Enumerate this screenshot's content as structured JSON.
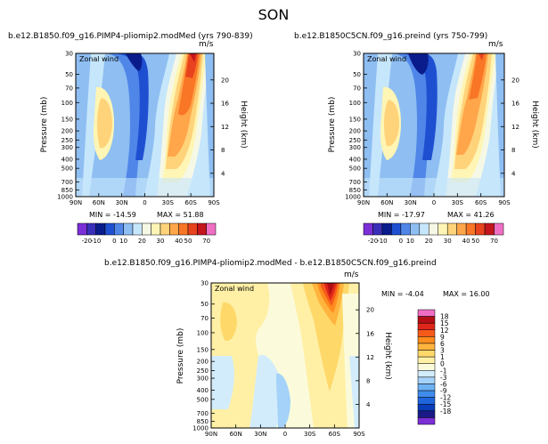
{
  "season_title": "SON",
  "colors": {
    "main_scale": [
      "#7b2fd6",
      "#3a2fb8",
      "#0a1c8c",
      "#1f4fd1",
      "#4f86e8",
      "#8ebef2",
      "#c6e6fb",
      "#f6f8e6",
      "#fff5b4",
      "#ffd37a",
      "#ffa64a",
      "#f87626",
      "#e8421e",
      "#c4151c",
      "#ef6ec3"
    ],
    "diff_scale": [
      "#7b2fd6",
      "#1a1a86",
      "#0a3dba",
      "#1f65dc",
      "#3f8cec",
      "#6eb2f3",
      "#a4d2f8",
      "#d2ecfb",
      "#fbfbdc",
      "#fff0a6",
      "#ffd86a",
      "#ffb43e",
      "#ff8c1e",
      "#f55a1a",
      "#e0261a",
      "#b40f15",
      "#ef6ec3"
    ]
  },
  "chart_data": [
    {
      "type": "heatmap",
      "title": "b.e12.B1850.f09_g16.PIMP4-pliomip2.modMed (yrs 790-839)",
      "field_label": "Zonal wind",
      "units": "m/s",
      "ylabel": "Pressure (mb)",
      "y2label": "Height (km)",
      "x_ticks": [
        "90N",
        "60N",
        "30N",
        "0",
        "30S",
        "60S",
        "90S"
      ],
      "y_ticks": [
        "30",
        "50",
        "70",
        "100",
        "150",
        "200",
        "250",
        "300",
        "400",
        "500",
        "700",
        "850",
        "1000"
      ],
      "y2_ticks": [
        "20",
        "16",
        "12",
        "8",
        "4"
      ],
      "min_label": "MIN = -14.59",
      "max_label": "MAX = 51.88",
      "min": -14.59,
      "max": 51.88,
      "levels": [
        "-20",
        "-10",
        "0",
        "10",
        "20",
        "30",
        "40",
        "50",
        "70"
      ]
    },
    {
      "type": "heatmap",
      "title": "b.e12.B1850C5CN.f09_g16.preind (yrs 750-799)",
      "field_label": "Zonal wind",
      "units": "m/s",
      "ylabel": "Pressure (mb)",
      "y2label": "Height (km)",
      "x_ticks": [
        "90N",
        "60N",
        "30N",
        "0",
        "30S",
        "60S",
        "90S"
      ],
      "y_ticks": [
        "30",
        "50",
        "70",
        "100",
        "150",
        "200",
        "250",
        "300",
        "400",
        "500",
        "700",
        "850",
        "1000"
      ],
      "y2_ticks": [
        "20",
        "16",
        "12",
        "8",
        "4"
      ],
      "min_label": "MIN = -17.97",
      "max_label": "MAX = 41.26",
      "min": -17.97,
      "max": 41.26,
      "levels": [
        "-20",
        "-10",
        "0",
        "10",
        "20",
        "30",
        "40",
        "50",
        "70"
      ]
    },
    {
      "type": "heatmap",
      "title": "b.e12.B1850.f09_g16.PIMP4-pliomip2.modMed - b.e12.B1850C5CN.f09_g16.preind",
      "field_label": "Zonal wind",
      "units": "m/s",
      "ylabel": "Pressure (mb)",
      "y2label": "Height (km)",
      "x_ticks": [
        "90N",
        "60N",
        "30N",
        "0",
        "30S",
        "60S",
        "90S"
      ],
      "y_ticks": [
        "30",
        "50",
        "70",
        "100",
        "150",
        "200",
        "250",
        "300",
        "400",
        "500",
        "700",
        "850",
        "1000"
      ],
      "y2_ticks": [
        "20",
        "16",
        "12",
        "8",
        "4"
      ],
      "min_label": "MIN = -4.04",
      "max_label": "MAX = 16.00",
      "min": -4.04,
      "max": 16.0,
      "levels": [
        "18",
        "15",
        "12",
        "9",
        "6",
        "3",
        "1",
        "0",
        "-1",
        "-3",
        "-6",
        "-9",
        "-12",
        "-15",
        "-18"
      ]
    }
  ]
}
